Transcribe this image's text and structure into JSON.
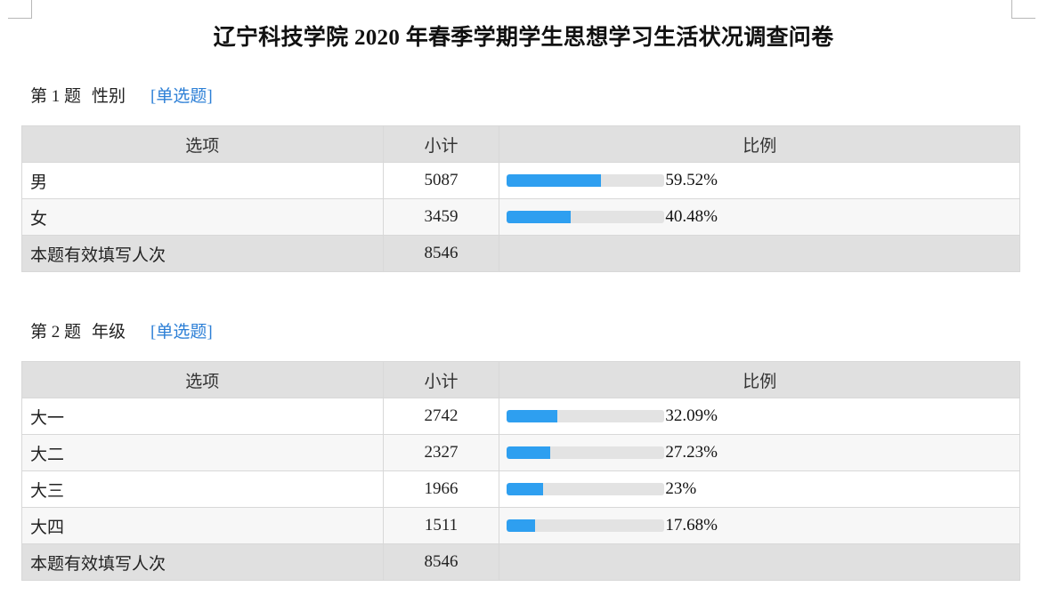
{
  "title": "辽宁科技学院 2020 年春季学期学生思想学习生活状况调查问卷",
  "questions": [
    {
      "number_label": "第 1 题",
      "title": "性别",
      "type_label": "[单选题]",
      "headers": {
        "option": "选项",
        "count": "小计",
        "ratio": "比例"
      },
      "rows": [
        {
          "option": "男",
          "count": "5087",
          "percent_text": "59.52%",
          "percent": 59.52
        },
        {
          "option": "女",
          "count": "3459",
          "percent_text": "40.48%",
          "percent": 40.48
        }
      ],
      "total_label": "本题有效填写人次",
      "total_count": "8546"
    },
    {
      "number_label": "第 2 题",
      "title": "年级",
      "type_label": "[单选题]",
      "headers": {
        "option": "选项",
        "count": "小计",
        "ratio": "比例"
      },
      "rows": [
        {
          "option": "大一",
          "count": "2742",
          "percent_text": "32.09%",
          "percent": 32.09
        },
        {
          "option": "大二",
          "count": "2327",
          "percent_text": "27.23%",
          "percent": 27.23
        },
        {
          "option": "大三",
          "count": "1966",
          "percent_text": "23%",
          "percent": 23
        },
        {
          "option": "大四",
          "count": "1511",
          "percent_text": "17.68%",
          "percent": 17.68
        }
      ],
      "total_label": "本题有效填写人次",
      "total_count": "8546"
    }
  ],
  "colors": {
    "bar_fill": "#2e9ff0",
    "bar_track": "#e3e3e3",
    "header_bg": "#e0e0e0",
    "link": "#2c7fd6"
  }
}
